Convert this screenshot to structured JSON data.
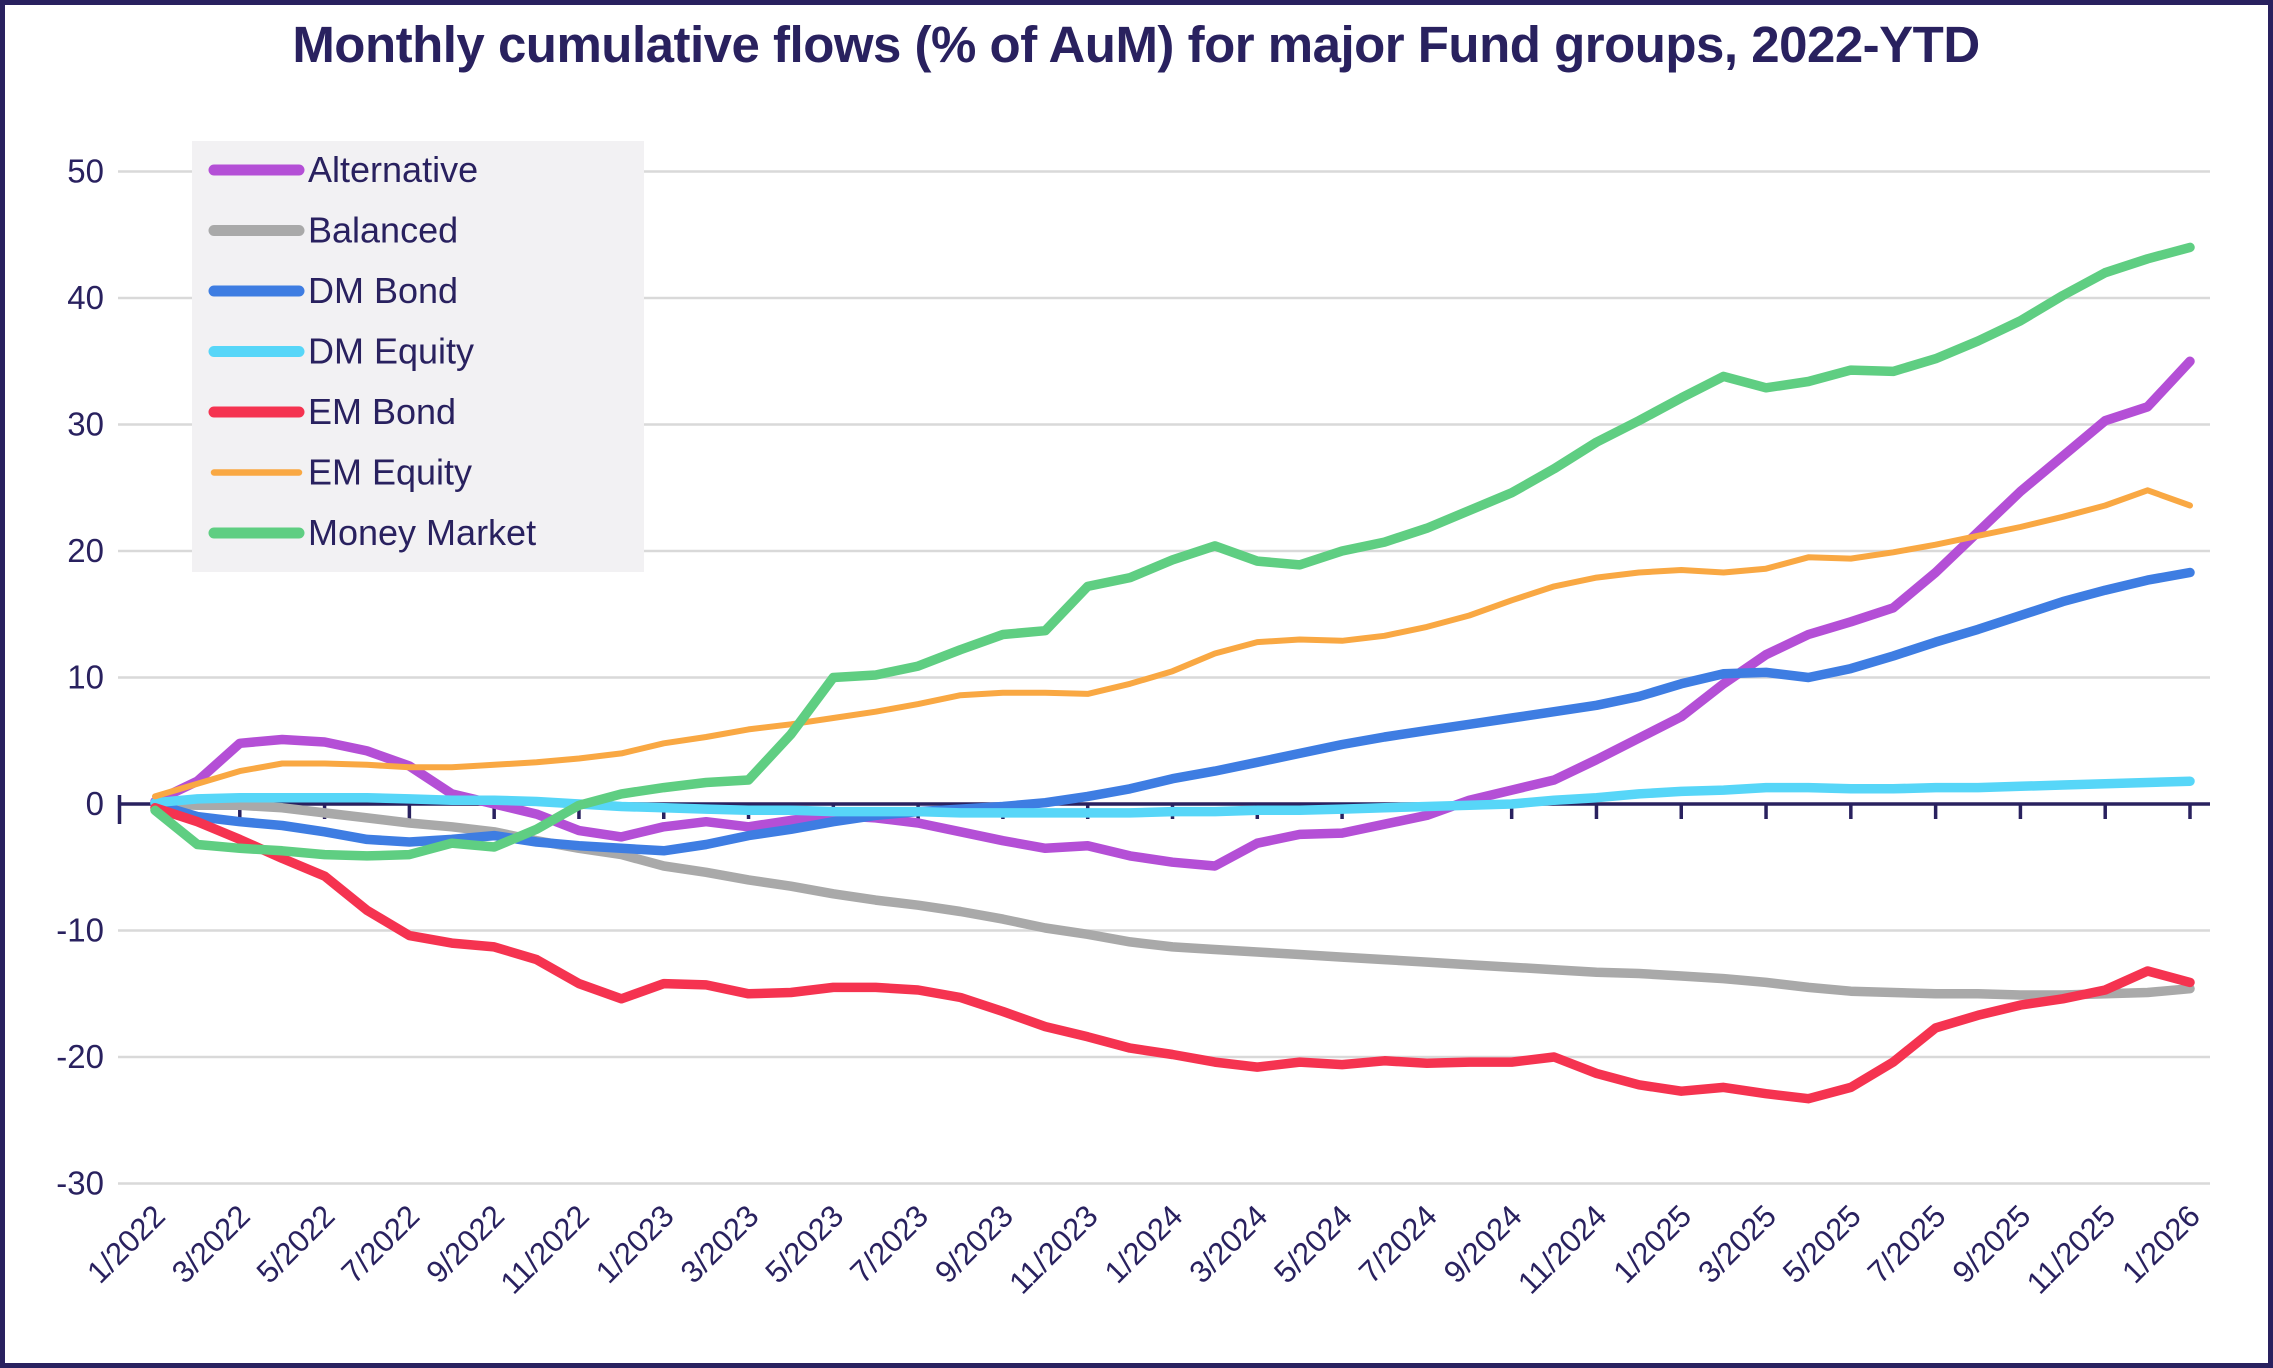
{
  "title": "Monthly cumulative flows (% of AuM) for major Fund groups, 2022-YTD",
  "colors": {
    "background": "#ffffff",
    "border": "#29215f",
    "text": "#29215f",
    "gridline": "#d9d9d9",
    "zero_axis": "#29215f",
    "legend_bg": "#f2f1f3"
  },
  "chart_data": {
    "type": "line",
    "title": "Monthly cumulative flows (% of AuM) for major Fund groups, 2022-YTD",
    "xlabel": "",
    "ylabel": "",
    "ylim": [
      -30,
      50
    ],
    "y_ticks": [
      50,
      40,
      30,
      20,
      10,
      0,
      -10,
      -20,
      -30
    ],
    "x_tick_labels": [
      "1/2022",
      "3/2022",
      "5/2022",
      "7/2022",
      "9/2022",
      "11/2022",
      "1/2023",
      "3/2023",
      "5/2023",
      "7/2023",
      "9/2023",
      "11/2023",
      "1/2024",
      "3/2024",
      "5/2024",
      "7/2024",
      "9/2024",
      "11/2024",
      "1/2025",
      "3/2025",
      "5/2025",
      "7/2025",
      "9/2025",
      "11/2025",
      "1/2026"
    ],
    "x_months": [
      "1/2022",
      "2/2022",
      "3/2022",
      "4/2022",
      "5/2022",
      "6/2022",
      "7/2022",
      "8/2022",
      "9/2022",
      "10/2022",
      "11/2022",
      "12/2022",
      "1/2023",
      "2/2023",
      "3/2023",
      "4/2023",
      "5/2023",
      "6/2023",
      "7/2023",
      "8/2023",
      "9/2023",
      "10/2023",
      "11/2023",
      "12/2023",
      "1/2024",
      "2/2024",
      "3/2024",
      "4/2024",
      "5/2024",
      "6/2024",
      "7/2024",
      "8/2024",
      "9/2024",
      "10/2024",
      "11/2024",
      "12/2024",
      "1/2025",
      "2/2025",
      "3/2025",
      "4/2025",
      "5/2025",
      "6/2025",
      "7/2025",
      "8/2025",
      "9/2025",
      "10/2025",
      "11/2025",
      "12/2025",
      "1/2026"
    ],
    "grid": true,
    "legend_position": "upper-left",
    "series": [
      {
        "name": "Alternative",
        "color": "#b44fd6",
        "width": 9.5,
        "values": [
          0.2,
          1.8,
          4.8,
          5.1,
          4.9,
          4.2,
          3.0,
          0.8,
          0.0,
          -0.8,
          -2.1,
          -2.6,
          -1.8,
          -1.4,
          -1.8,
          -1.3,
          -0.9,
          -1.1,
          -1.5,
          -2.2,
          -2.9,
          -3.5,
          -3.3,
          -4.1,
          -4.6,
          -4.9,
          -3.1,
          -2.4,
          -2.3,
          -1.6,
          -0.9,
          0.3,
          1.1,
          1.9,
          3.5,
          5.2,
          6.9,
          9.5,
          11.8,
          13.4,
          14.4,
          15.5,
          18.3,
          21.5,
          24.7,
          27.5,
          30.3,
          31.4,
          35.0
        ]
      },
      {
        "name": "Balanced",
        "color": "#a9a9a9",
        "width": 9.5,
        "values": [
          0.0,
          -0.1,
          -0.1,
          -0.3,
          -0.7,
          -1.1,
          -1.5,
          -1.8,
          -2.2,
          -2.9,
          -3.5,
          -4.0,
          -4.9,
          -5.4,
          -6.0,
          -6.5,
          -7.1,
          -7.6,
          -8.0,
          -8.5,
          -9.1,
          -9.8,
          -10.3,
          -10.9,
          -11.3,
          -11.5,
          -11.7,
          -11.9,
          -12.1,
          -12.3,
          -12.5,
          -12.7,
          -12.9,
          -13.1,
          -13.3,
          -13.4,
          -13.6,
          -13.8,
          -14.1,
          -14.5,
          -14.8,
          -14.9,
          -15.0,
          -15.0,
          -15.1,
          -15.1,
          -15.0,
          -14.9,
          -14.6
        ]
      },
      {
        "name": "DM Bond",
        "color": "#3e7de2",
        "width": 9.5,
        "values": [
          0.0,
          -1.0,
          -1.4,
          -1.7,
          -2.2,
          -2.8,
          -3.0,
          -2.8,
          -2.5,
          -3.0,
          -3.3,
          -3.5,
          -3.7,
          -3.2,
          -2.5,
          -2.0,
          -1.4,
          -0.9,
          -0.6,
          -0.4,
          -0.2,
          0.1,
          0.6,
          1.2,
          2.0,
          2.6,
          3.3,
          4.0,
          4.7,
          5.3,
          5.8,
          6.3,
          6.8,
          7.3,
          7.8,
          8.5,
          9.5,
          10.3,
          10.4,
          10.0,
          10.7,
          11.7,
          12.8,
          13.8,
          14.9,
          16.0,
          16.9,
          17.7,
          18.3
        ]
      },
      {
        "name": "DM Equity",
        "color": "#57d6f8",
        "width": 9.5,
        "values": [
          0.1,
          0.4,
          0.5,
          0.5,
          0.5,
          0.5,
          0.4,
          0.3,
          0.3,
          0.2,
          0.0,
          -0.2,
          -0.3,
          -0.4,
          -0.5,
          -0.5,
          -0.6,
          -0.6,
          -0.6,
          -0.7,
          -0.7,
          -0.7,
          -0.7,
          -0.7,
          -0.6,
          -0.6,
          -0.5,
          -0.5,
          -0.4,
          -0.3,
          -0.2,
          -0.1,
          0.0,
          0.3,
          0.5,
          0.8,
          1.0,
          1.1,
          1.3,
          1.3,
          1.2,
          1.2,
          1.3,
          1.3,
          1.4,
          1.5,
          1.6,
          1.7,
          1.8
        ]
      },
      {
        "name": "EM Bond",
        "color": "#f53350",
        "width": 9.5,
        "values": [
          -0.3,
          -1.4,
          -2.8,
          -4.3,
          -5.7,
          -8.4,
          -10.4,
          -11.0,
          -11.3,
          -12.3,
          -14.2,
          -15.4,
          -14.2,
          -14.3,
          -15.0,
          -14.9,
          -14.5,
          -14.5,
          -14.7,
          -15.3,
          -16.4,
          -17.6,
          -18.4,
          -19.3,
          -19.8,
          -20.4,
          -20.8,
          -20.4,
          -20.6,
          -20.3,
          -20.5,
          -20.4,
          -20.4,
          -20.0,
          -21.3,
          -22.2,
          -22.7,
          -22.4,
          -22.9,
          -23.3,
          -22.4,
          -20.4,
          -17.7,
          -16.7,
          -15.9,
          -15.4,
          -14.7,
          -13.2,
          -14.1
        ]
      },
      {
        "name": "EM Equity",
        "color": "#f9a843",
        "width": 6,
        "values": [
          0.6,
          1.6,
          2.6,
          3.2,
          3.2,
          3.1,
          2.9,
          2.9,
          3.1,
          3.3,
          3.6,
          4.0,
          4.8,
          5.3,
          5.9,
          6.3,
          6.8,
          7.3,
          7.9,
          8.6,
          8.8,
          8.8,
          8.7,
          9.5,
          10.5,
          11.9,
          12.8,
          13.0,
          12.9,
          13.3,
          14.0,
          14.9,
          16.1,
          17.2,
          17.9,
          18.3,
          18.5,
          18.3,
          18.6,
          19.5,
          19.4,
          19.9,
          20.5,
          21.2,
          21.9,
          22.7,
          23.6,
          24.8,
          23.6
        ]
      },
      {
        "name": "Money Market",
        "color": "#5fce82",
        "width": 9.5,
        "values": [
          -0.5,
          -3.2,
          -3.5,
          -3.7,
          -4.0,
          -4.1,
          -4.0,
          -3.1,
          -3.4,
          -2.0,
          -0.1,
          0.8,
          1.3,
          1.7,
          1.9,
          5.5,
          10.0,
          10.2,
          10.9,
          12.2,
          13.4,
          13.7,
          17.2,
          17.9,
          19.3,
          20.4,
          19.2,
          18.9,
          20.0,
          20.7,
          21.8,
          23.2,
          24.6,
          26.5,
          28.6,
          30.3,
          32.1,
          33.8,
          32.9,
          33.4,
          34.3,
          34.2,
          35.2,
          36.6,
          38.2,
          40.2,
          42.0,
          43.1,
          44.0
        ]
      }
    ]
  },
  "legend": {
    "items": [
      "Alternative",
      "Balanced",
      "DM Bond",
      "DM Equity",
      "EM Bond",
      "EM Equity",
      "Money Market"
    ]
  }
}
